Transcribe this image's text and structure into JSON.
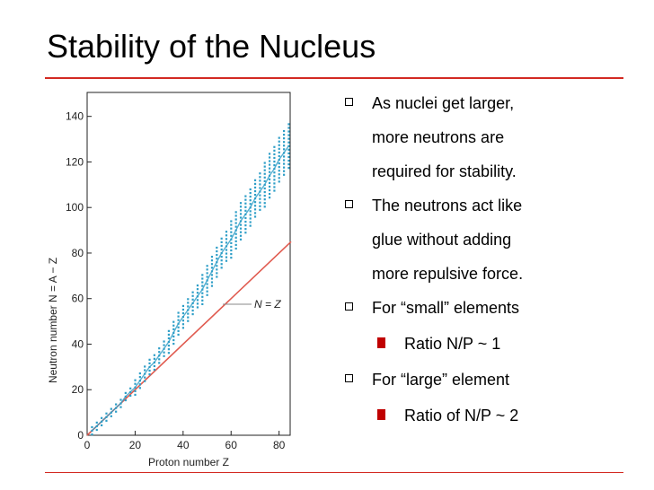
{
  "slide": {
    "title": "Stability of the Nucleus",
    "accent_color": "#d32a22",
    "bullets": [
      {
        "level": 1,
        "text": "As nuclei get larger, more neutrons are required for stability."
      },
      {
        "level": 1,
        "text": "The neutrons act like glue without adding more repulsive force."
      },
      {
        "level": 1,
        "text": "For “small” elements"
      },
      {
        "level": 2,
        "text": "Ratio N/P ~ 1"
      },
      {
        "level": 1,
        "text": "For “large” element"
      },
      {
        "level": 2,
        "text": "Ratio of N/P ~ 2"
      }
    ]
  },
  "chart_data": {
    "type": "scatter",
    "xlabel": "Proton number Z",
    "ylabel": "Neutron number N = A − Z",
    "xlim": [
      0,
      85
    ],
    "ylim": [
      0,
      145
    ],
    "x_ticks": [
      0,
      20,
      40,
      60,
      80
    ],
    "y_ticks": [
      0,
      20,
      40,
      60,
      80,
      100,
      120,
      140
    ],
    "grid": false,
    "annotation": "N = Z",
    "series": [
      {
        "name": "N = Z",
        "style": "line",
        "color": "#e05a4f",
        "points": [
          [
            0,
            0
          ],
          [
            85,
            85
          ]
        ]
      },
      {
        "style": "points",
        "color": "#2e9ec7",
        "points": [
          [
            2,
            2
          ],
          [
            4,
            4
          ],
          [
            6,
            6
          ],
          [
            8,
            8
          ],
          [
            10,
            10
          ],
          [
            12,
            12
          ],
          [
            14,
            14
          ],
          [
            16,
            17
          ],
          [
            18,
            19
          ],
          [
            20,
            21
          ],
          [
            22,
            24
          ],
          [
            24,
            27
          ],
          [
            26,
            30
          ],
          [
            28,
            32
          ],
          [
            30,
            35
          ],
          [
            32,
            38
          ],
          [
            34,
            41
          ],
          [
            36,
            45
          ],
          [
            38,
            49
          ],
          [
            40,
            52
          ],
          [
            42,
            55
          ],
          [
            44,
            58
          ],
          [
            46,
            61
          ],
          [
            48,
            64
          ],
          [
            50,
            68
          ],
          [
            52,
            72
          ],
          [
            54,
            76
          ],
          [
            56,
            80
          ],
          [
            58,
            83
          ],
          [
            60,
            86
          ],
          [
            62,
            90
          ],
          [
            64,
            94
          ],
          [
            66,
            97
          ],
          [
            68,
            100
          ],
          [
            70,
            104
          ],
          [
            72,
            107
          ],
          [
            74,
            110
          ],
          [
            76,
            114
          ],
          [
            78,
            117
          ],
          [
            80,
            121
          ],
          [
            82,
            124
          ],
          [
            84,
            127
          ]
        ]
      }
    ],
    "point_band": 3
  }
}
